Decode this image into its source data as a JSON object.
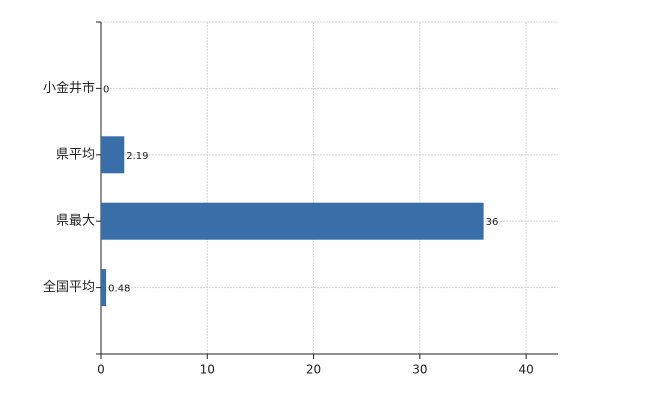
{
  "chart_data": {
    "type": "barh",
    "categories": [
      "小金井市",
      "県平均",
      "県最大",
      "全国平均"
    ],
    "values": [
      0,
      2.19,
      36,
      0.48
    ],
    "color": "#3a6ea8",
    "xlim": [
      0,
      43
    ],
    "xticks": [
      0,
      10,
      20,
      30,
      40
    ],
    "grid": true
  }
}
